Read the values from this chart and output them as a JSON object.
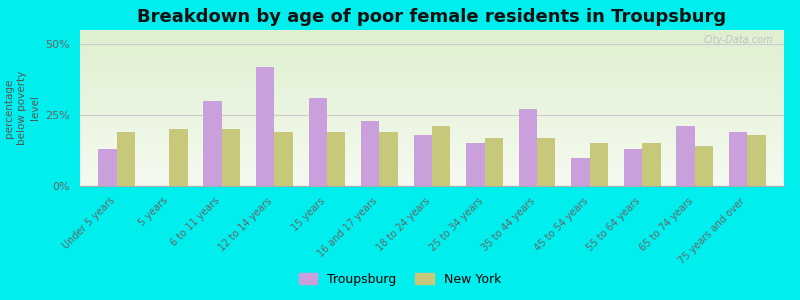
{
  "title": "Breakdown by age of poor female residents in Troupsburg",
  "ylabel": "percentage\nbelow poverty\nlevel",
  "categories": [
    "Under 5 years",
    "5 years",
    "6 to 11 years",
    "12 to 14 years",
    "15 years",
    "16 and 17 years",
    "18 to 24 years",
    "25 to 34 years",
    "35 to 44 years",
    "45 to 54 years",
    "55 to 64 years",
    "65 to 74 years",
    "75 years and over"
  ],
  "troupsburg": [
    13,
    0,
    30,
    42,
    31,
    23,
    18,
    15,
    27,
    10,
    13,
    21,
    19
  ],
  "new_york": [
    19,
    20,
    20,
    19,
    19,
    19,
    21,
    17,
    17,
    15,
    15,
    14,
    18
  ],
  "troupsburg_color": "#c9a0dc",
  "new_york_color": "#c8c87a",
  "ylim": [
    0,
    55
  ],
  "yticks": [
    0,
    25,
    50
  ],
  "ytick_labels": [
    "0%",
    "25%",
    "50%"
  ],
  "bg_top_color": "#f5faf0",
  "bg_bottom_color": "#dff0d0",
  "outer_bg": "#00eeee",
  "bar_width": 0.35,
  "title_fontsize": 13,
  "legend_labels": [
    "Troupsburg",
    "New York"
  ],
  "watermark": "City-Data.com"
}
